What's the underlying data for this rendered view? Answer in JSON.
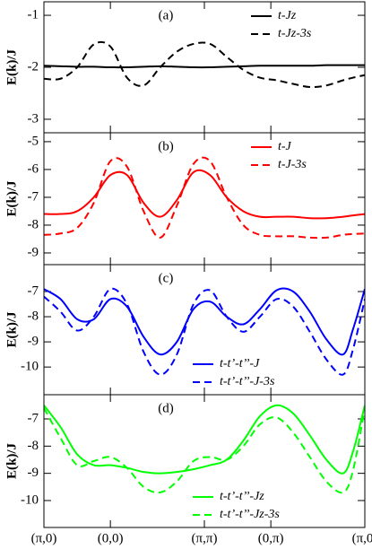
{
  "chart_data": [
    {
      "type": "line",
      "annotation": "(a)",
      "y_label": "E(k)/J",
      "legend": "upper right",
      "x": [
        0,
        0.25,
        0.5,
        0.75,
        1,
        1.25,
        1.5,
        1.75,
        2,
        2.25,
        2.5,
        2.75,
        3,
        3.25,
        3.5,
        3.75,
        4,
        4.25,
        4.5,
        4.65,
        4.828
      ],
      "xlim": [
        0,
        4.828
      ],
      "xticks": [
        0,
        1,
        2.414,
        3.414,
        4.828
      ],
      "ylim": [
        -3.26,
        -0.74
      ],
      "yticks": [
        -3,
        -2,
        -1
      ],
      "series": [
        {
          "name": "t-Jz",
          "color": "#000000",
          "dash": false,
          "values": [
            -1.97,
            -1.98,
            -1.99,
            -1.99,
            -2.0,
            -2.0,
            -1.99,
            -1.98,
            -1.99,
            -2.0,
            -2.0,
            -1.99,
            -1.98,
            -1.97,
            -1.97,
            -1.97,
            -1.97,
            -1.96,
            -1.96,
            -1.96,
            -1.96
          ]
        },
        {
          "name": "t-Jz-3s",
          "color": "#000000",
          "dash": true,
          "values": [
            -2.22,
            -2.22,
            -2.0,
            -1.56,
            -1.6,
            -2.2,
            -2.35,
            -2.0,
            -1.7,
            -1.55,
            -1.55,
            -1.8,
            -2.05,
            -2.2,
            -2.25,
            -2.32,
            -2.38,
            -2.35,
            -2.25,
            -2.2,
            -2.15
          ]
        }
      ]
    },
    {
      "type": "line",
      "annotation": "(b)",
      "y_label": "E(k)/J",
      "legend": "upper right",
      "x": [
        0,
        0.25,
        0.5,
        0.75,
        1,
        1.25,
        1.5,
        1.75,
        2,
        2.25,
        2.5,
        2.75,
        3,
        3.25,
        3.5,
        3.75,
        4,
        4.25,
        4.5,
        4.65,
        4.828
      ],
      "xlim": [
        0,
        4.828
      ],
      "xticks": [
        0,
        1,
        2.414,
        3.414,
        4.828
      ],
      "ylim": [
        -9.42,
        -4.68
      ],
      "yticks": [
        -9,
        -8,
        -7,
        -6,
        -5
      ],
      "series": [
        {
          "name": "t-J",
          "color": "#ff0000",
          "dash": false,
          "values": [
            -7.6,
            -7.6,
            -7.5,
            -7.0,
            -6.2,
            -6.2,
            -7.2,
            -7.7,
            -7.1,
            -6.1,
            -6.2,
            -7.0,
            -7.5,
            -7.7,
            -7.7,
            -7.7,
            -7.75,
            -7.75,
            -7.7,
            -7.65,
            -7.6
          ]
        },
        {
          "name": "t-J-3s",
          "color": "#ff0000",
          "dash": true,
          "values": [
            -8.35,
            -8.3,
            -8.1,
            -7.2,
            -5.7,
            -5.9,
            -7.5,
            -8.45,
            -7.3,
            -5.8,
            -5.7,
            -7.0,
            -8.0,
            -8.35,
            -8.4,
            -8.4,
            -8.45,
            -8.45,
            -8.35,
            -8.32,
            -8.3
          ]
        }
      ]
    },
    {
      "type": "line",
      "annotation": "(c)",
      "y_label": "E(k)/J",
      "legend": "lower right",
      "x": [
        0,
        0.25,
        0.5,
        0.75,
        1,
        1.25,
        1.5,
        1.75,
        2,
        2.25,
        2.5,
        2.75,
        3,
        3.25,
        3.5,
        3.75,
        4,
        4.25,
        4.5,
        4.65,
        4.828
      ],
      "xlim": [
        0,
        4.828
      ],
      "xticks": [
        0,
        1,
        2.414,
        3.414,
        4.828
      ],
      "ylim": [
        -11.1,
        -5.93
      ],
      "yticks": [
        -10,
        -9,
        -8,
        -7
      ],
      "series": [
        {
          "name": "t-t’-t’’-J",
          "color": "#0000ff",
          "dash": false,
          "values": [
            -6.9,
            -7.3,
            -8.1,
            -8.1,
            -7.3,
            -7.6,
            -8.8,
            -9.5,
            -9.0,
            -7.7,
            -7.4,
            -8.0,
            -8.3,
            -7.7,
            -6.95,
            -7.0,
            -7.8,
            -8.9,
            -9.5,
            -8.5,
            -6.9
          ]
        },
        {
          "name": "t-t’-t’’-J-3s",
          "color": "#0000ff",
          "dash": true,
          "values": [
            -7.2,
            -7.8,
            -8.55,
            -8.0,
            -6.9,
            -7.5,
            -9.4,
            -10.3,
            -9.5,
            -7.5,
            -6.95,
            -8.0,
            -8.6,
            -8.0,
            -7.3,
            -7.6,
            -8.6,
            -9.7,
            -10.3,
            -9.3,
            -7.3
          ]
        }
      ]
    },
    {
      "type": "line",
      "annotation": "(d)",
      "y_label": "E(k)/J",
      "legend": "lower right",
      "x": [
        0,
        0.25,
        0.5,
        0.75,
        1,
        1.25,
        1.5,
        1.75,
        2,
        2.25,
        2.5,
        2.75,
        3,
        3.25,
        3.5,
        3.75,
        4,
        4.25,
        4.5,
        4.65,
        4.828
      ],
      "xlim": [
        0,
        4.828
      ],
      "xticks": [
        {
          "value": 0,
          "label": "(π,0)"
        },
        {
          "value": 1,
          "label": "(0,0)"
        },
        {
          "value": 2.414,
          "label": "(π,π)"
        },
        {
          "value": 3.414,
          "label": "(0,π)"
        },
        {
          "value": 4.828,
          "label": "(π,0)"
        }
      ],
      "ylim": [
        -10.99,
        -6.11
      ],
      "yticks": [
        -10,
        -9,
        -8,
        -7
      ],
      "series": [
        {
          "name": "t-t’-t’’-Jz",
          "color": "#00ff00",
          "dash": false,
          "values": [
            -6.5,
            -7.3,
            -8.3,
            -8.7,
            -8.7,
            -8.8,
            -8.95,
            -9.0,
            -8.95,
            -8.85,
            -8.7,
            -8.5,
            -7.8,
            -6.9,
            -6.5,
            -6.8,
            -7.6,
            -8.5,
            -9.0,
            -8.2,
            -6.5
          ]
        },
        {
          "name": "t-t’-t’’-Jz-3s",
          "color": "#00ff00",
          "dash": true,
          "values": [
            -6.6,
            -7.7,
            -8.7,
            -8.55,
            -8.4,
            -8.8,
            -9.5,
            -9.7,
            -9.3,
            -8.55,
            -8.4,
            -8.5,
            -8.0,
            -7.2,
            -6.95,
            -7.5,
            -8.4,
            -9.3,
            -9.7,
            -8.9,
            -6.6
          ]
        }
      ]
    }
  ]
}
